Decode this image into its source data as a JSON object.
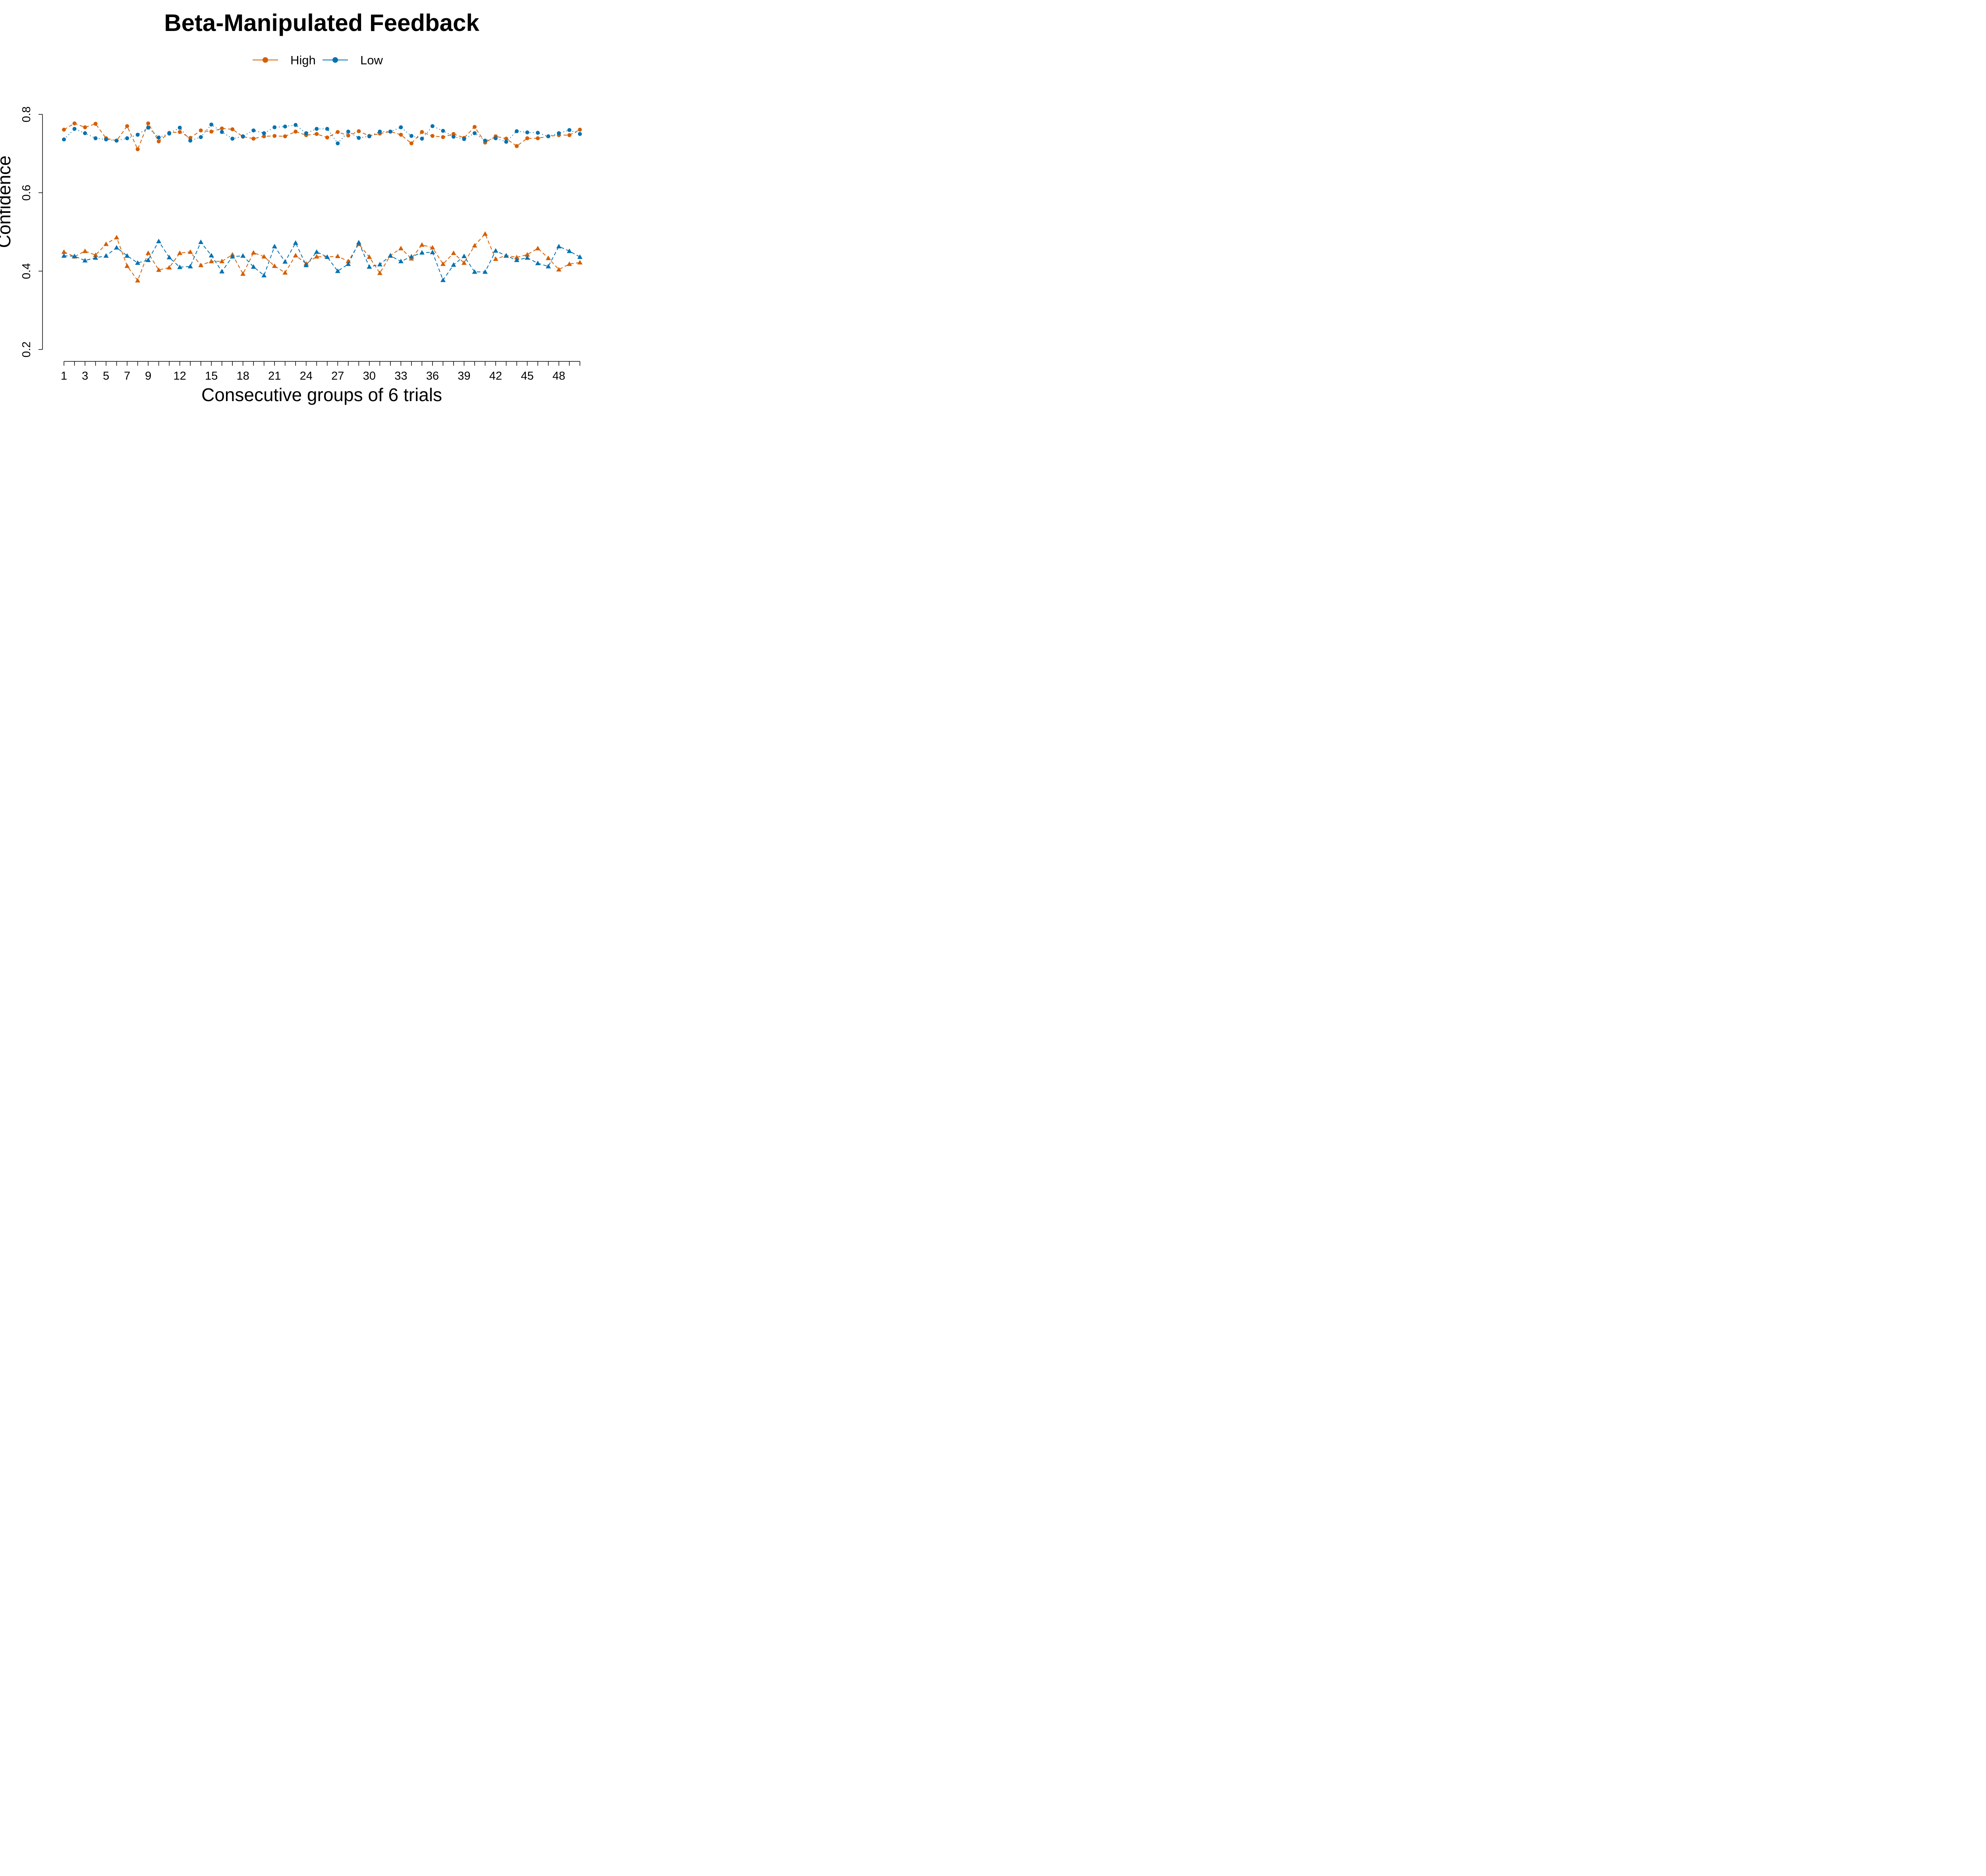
{
  "chart_data": {
    "type": "line",
    "title": "Beta-Manipulated Feedback",
    "xlabel": "Consecutive groups of 6 trials",
    "ylabel": "Confidence",
    "xlim": [
      1,
      50
    ],
    "ylim": [
      0.2,
      0.8
    ],
    "x": [
      1,
      2,
      3,
      4,
      5,
      6,
      7,
      8,
      9,
      10,
      11,
      12,
      13,
      14,
      15,
      16,
      17,
      18,
      19,
      20,
      21,
      22,
      23,
      24,
      25,
      26,
      27,
      28,
      29,
      30,
      31,
      32,
      33,
      34,
      35,
      36,
      37,
      38,
      39,
      40,
      41,
      42,
      43,
      44,
      45,
      46,
      47,
      48,
      49,
      50
    ],
    "x_tick_values": [
      1,
      3,
      5,
      7,
      9,
      12,
      15,
      18,
      21,
      24,
      27,
      30,
      33,
      36,
      39,
      42,
      45,
      48
    ],
    "x_tick_labels": [
      "1",
      "3",
      "5",
      "7",
      "9",
      "12",
      "15",
      "18",
      "21",
      "24",
      "27",
      "30",
      "33",
      "36",
      "39",
      "42",
      "45",
      "48"
    ],
    "y_ticks": [
      0.2,
      0.4,
      0.6,
      0.8
    ],
    "y_tick_labels": [
      "0.2",
      "0.4",
      "0.6",
      "0.8"
    ],
    "grid": false,
    "legend": {
      "position": "top-center",
      "entries": [
        {
          "label": "High",
          "color": "#D55E00",
          "marker": "circle"
        },
        {
          "label": "Low",
          "color": "#0072B2",
          "marker": "circle"
        }
      ]
    },
    "series": [
      {
        "name": "High",
        "group": "upper",
        "color": "#D55E00",
        "marker": "circle",
        "line_style": "dashed",
        "values": [
          0.761,
          0.777,
          0.767,
          0.776,
          0.739,
          0.733,
          0.77,
          0.711,
          0.777,
          0.731,
          0.753,
          0.755,
          0.74,
          0.759,
          0.756,
          0.764,
          0.762,
          0.743,
          0.738,
          0.744,
          0.745,
          0.744,
          0.756,
          0.747,
          0.75,
          0.741,
          0.755,
          0.746,
          0.757,
          0.745,
          0.751,
          0.756,
          0.748,
          0.726,
          0.755,
          0.745,
          0.742,
          0.75,
          0.74,
          0.768,
          0.728,
          0.744,
          0.738,
          0.719,
          0.739,
          0.739,
          0.744,
          0.747,
          0.747,
          0.761
        ]
      },
      {
        "name": "Low",
        "group": "upper",
        "color": "#0072B2",
        "marker": "circle",
        "line_style": "dotted",
        "values": [
          0.736,
          0.763,
          0.752,
          0.739,
          0.736,
          0.733,
          0.739,
          0.748,
          0.766,
          0.741,
          0.751,
          0.766,
          0.733,
          0.742,
          0.774,
          0.755,
          0.738,
          0.744,
          0.759,
          0.752,
          0.767,
          0.769,
          0.773,
          0.752,
          0.763,
          0.763,
          0.726,
          0.756,
          0.74,
          0.744,
          0.756,
          0.756,
          0.767,
          0.745,
          0.738,
          0.77,
          0.758,
          0.743,
          0.737,
          0.752,
          0.733,
          0.739,
          0.73,
          0.757,
          0.754,
          0.753,
          0.744,
          0.752,
          0.76,
          0.75
        ]
      },
      {
        "group": "lower",
        "color": "#D55E00",
        "marker": "triangle",
        "line_style": "dashed",
        "values": [
          0.449,
          0.437,
          0.451,
          0.441,
          0.469,
          0.486,
          0.413,
          0.376,
          0.446,
          0.403,
          0.409,
          0.446,
          0.449,
          0.415,
          0.425,
          0.425,
          0.442,
          0.393,
          0.447,
          0.437,
          0.413,
          0.396,
          0.44,
          0.419,
          0.437,
          0.436,
          0.438,
          0.425,
          0.469,
          0.436,
          0.395,
          0.44,
          0.458,
          0.432,
          0.467,
          0.46,
          0.418,
          0.446,
          0.421,
          0.465,
          0.495,
          0.431,
          0.44,
          0.435,
          0.442,
          0.458,
          0.433,
          0.404,
          0.418,
          0.422
        ]
      },
      {
        "group": "lower",
        "color": "#0072B2",
        "marker": "triangle",
        "line_style": "dashed",
        "values": [
          0.439,
          0.438,
          0.427,
          0.434,
          0.439,
          0.46,
          0.439,
          0.421,
          0.428,
          0.476,
          0.435,
          0.41,
          0.412,
          0.474,
          0.44,
          0.399,
          0.437,
          0.439,
          0.411,
          0.389,
          0.463,
          0.424,
          0.472,
          0.415,
          0.449,
          0.436,
          0.4,
          0.418,
          0.473,
          0.411,
          0.417,
          0.439,
          0.425,
          0.437,
          0.447,
          0.448,
          0.377,
          0.416,
          0.438,
          0.398,
          0.398,
          0.452,
          0.439,
          0.428,
          0.434,
          0.42,
          0.412,
          0.463,
          0.451,
          0.436
        ]
      }
    ]
  }
}
